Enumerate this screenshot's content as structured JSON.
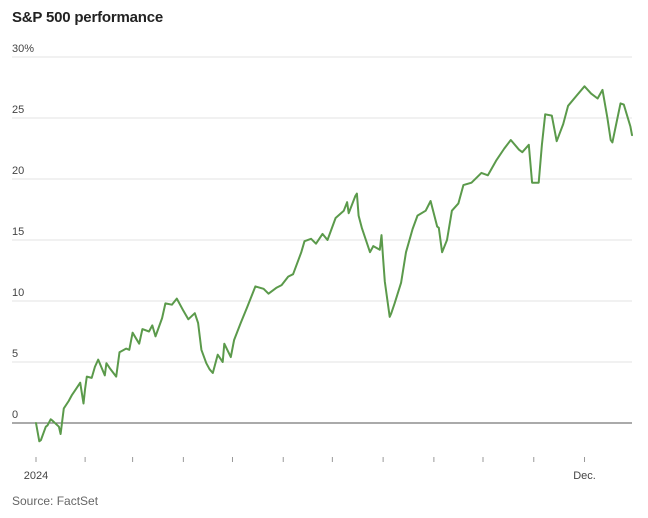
{
  "chart_data": {
    "type": "line",
    "title": "S&P 500 performance",
    "xlabel": "",
    "ylabel": "",
    "source": "Source: FactSet",
    "y_tick_labels": [
      "0",
      "5",
      "10",
      "15",
      "20",
      "25",
      "30%"
    ],
    "y_ticks": [
      0,
      5,
      10,
      15,
      20,
      25,
      30
    ],
    "ylim": [
      -2,
      30
    ],
    "x_tick_labels": [
      "2024",
      "Dec."
    ],
    "x_label_dates": [
      "2024-01-02",
      "2024-12-02"
    ],
    "x_minor_ticks": [
      "2024-02-01",
      "2024-03-01",
      "2024-04-01",
      "2024-05-01",
      "2024-06-01",
      "2024-07-01",
      "2024-08-01",
      "2024-09-01",
      "2024-10-01",
      "2024-11-01"
    ],
    "xlim": [
      "2024-01-02",
      "2024-12-31"
    ],
    "grid": true,
    "line_color": "#5b9a4b",
    "series": [
      {
        "x": [
          "2024-01-02",
          "2024-01-04",
          "2024-01-05",
          "2024-01-08",
          "2024-01-09",
          "2024-01-11",
          "2024-01-12",
          "2024-01-16",
          "2024-01-17",
          "2024-01-19",
          "2024-01-22",
          "2024-01-24",
          "2024-01-26",
          "2024-01-29",
          "2024-01-31",
          "2024-02-01",
          "2024-02-02",
          "2024-02-05",
          "2024-02-07",
          "2024-02-09",
          "2024-02-13",
          "2024-02-14",
          "2024-02-16",
          "2024-02-20",
          "2024-02-22",
          "2024-02-26",
          "2024-02-28",
          "2024-03-01",
          "2024-03-05",
          "2024-03-07",
          "2024-03-11",
          "2024-03-13",
          "2024-03-15",
          "2024-03-19",
          "2024-03-21",
          "2024-03-25",
          "2024-03-28",
          "2024-04-01",
          "2024-04-04",
          "2024-04-08",
          "2024-04-10",
          "2024-04-12",
          "2024-04-15",
          "2024-04-17",
          "2024-04-19",
          "2024-04-22",
          "2024-04-25",
          "2024-04-26",
          "2024-04-30",
          "2024-05-02",
          "2024-05-06",
          "2024-05-10",
          "2024-05-15",
          "2024-05-20",
          "2024-05-23",
          "2024-05-28",
          "2024-05-31",
          "2024-06-04",
          "2024-06-07",
          "2024-06-12",
          "2024-06-14",
          "2024-06-18",
          "2024-06-21",
          "2024-06-25",
          "2024-06-28",
          "2024-07-03",
          "2024-07-08",
          "2024-07-10",
          "2024-07-11",
          "2024-07-15",
          "2024-07-16",
          "2024-07-17",
          "2024-07-19",
          "2024-07-24",
          "2024-07-26",
          "2024-07-30",
          "2024-07-31",
          "2024-08-01",
          "2024-08-02",
          "2024-08-05",
          "2024-08-06",
          "2024-08-08",
          "2024-08-12",
          "2024-08-15",
          "2024-08-19",
          "2024-08-22",
          "2024-08-27",
          "2024-08-30",
          "2024-09-03",
          "2024-09-04",
          "2024-09-06",
          "2024-09-09",
          "2024-09-12",
          "2024-09-16",
          "2024-09-19",
          "2024-09-24",
          "2024-09-30",
          "2024-10-04",
          "2024-10-09",
          "2024-10-14",
          "2024-10-18",
          "2024-10-23",
          "2024-10-25",
          "2024-10-29",
          "2024-10-31",
          "2024-11-04",
          "2024-11-06",
          "2024-11-08",
          "2024-11-12",
          "2024-11-15",
          "2024-11-19",
          "2024-11-22",
          "2024-11-27",
          "2024-12-02",
          "2024-12-06",
          "2024-12-10",
          "2024-12-13",
          "2024-12-16",
          "2024-12-18",
          "2024-12-19",
          "2024-12-24",
          "2024-12-26",
          "2024-12-30",
          "2024-12-31"
        ],
        "y": [
          0.0,
          -1.5,
          -1.4,
          -0.3,
          -0.2,
          0.3,
          0.2,
          -0.3,
          -0.9,
          1.2,
          1.8,
          2.3,
          2.7,
          3.3,
          1.6,
          2.8,
          3.8,
          3.7,
          4.6,
          5.2,
          3.9,
          4.9,
          4.5,
          3.8,
          5.8,
          6.1,
          6.0,
          7.4,
          6.5,
          7.7,
          7.5,
          8.0,
          7.1,
          8.6,
          9.8,
          9.7,
          10.2,
          9.2,
          8.5,
          9.0,
          8.2,
          6.0,
          4.9,
          4.4,
          4.1,
          5.6,
          5.0,
          6.5,
          5.4,
          6.8,
          8.2,
          9.5,
          11.2,
          11.0,
          10.6,
          11.1,
          11.3,
          12.0,
          12.2,
          14.0,
          14.9,
          15.1,
          14.7,
          15.5,
          15.0,
          16.8,
          17.4,
          18.1,
          17.2,
          18.6,
          18.8,
          17.0,
          16.0,
          14.0,
          14.5,
          14.2,
          15.4,
          13.5,
          11.6,
          8.7,
          9.0,
          9.8,
          11.5,
          14.0,
          15.9,
          17.0,
          17.4,
          18.2,
          16.1,
          16.0,
          14.0,
          15.0,
          17.4,
          18.0,
          19.5,
          19.7,
          20.5,
          20.3,
          21.5,
          22.5,
          23.2,
          22.4,
          22.2,
          22.8,
          19.7,
          19.7,
          22.8,
          25.3,
          25.2,
          23.1,
          24.5,
          26.0,
          26.8,
          27.6,
          27.0,
          26.6,
          27.3,
          25.0,
          23.2,
          23.0,
          26.2,
          26.1,
          24.3,
          23.6
        ]
      }
    ]
  }
}
